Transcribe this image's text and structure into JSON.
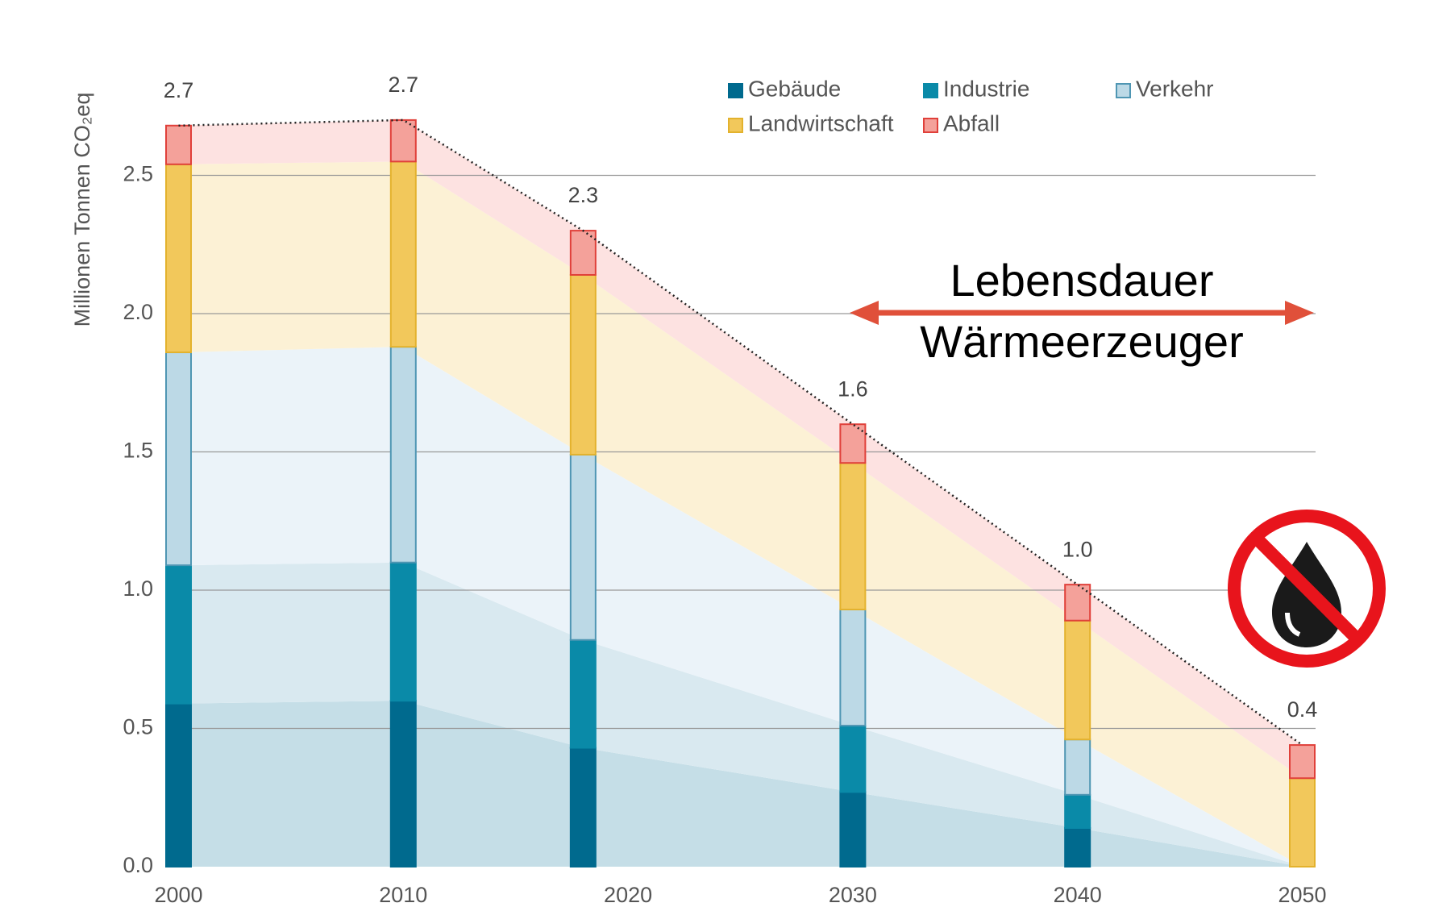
{
  "chart_data": {
    "type": "stacked_bar_area",
    "y_label": "Millionen Tonnen CO₂eq",
    "x": [
      2000,
      2010,
      2018,
      2030,
      2040,
      2050
    ],
    "xlim": [
      2000,
      2050
    ],
    "xticks": [
      2000,
      2010,
      2020,
      2030,
      2040,
      2050
    ],
    "ylim": [
      0,
      3.0
    ],
    "yticks": [
      {
        "value": 0,
        "label": "0.0"
      },
      0.5,
      {
        "value": 1,
        "label": "1.0"
      },
      1.5,
      {
        "value": 2,
        "label": "2.0"
      },
      2.5
    ],
    "grid": true,
    "series": [
      {
        "name": "Gebäude",
        "color": "#006a8e",
        "stroke": "#006a8e",
        "area_color": "#c5dee7",
        "values": [
          0.59,
          0.6,
          0.43,
          0.27,
          0.14,
          0
        ]
      },
      {
        "name": "Industrie",
        "color": "#0a8aa8",
        "stroke": "#0a8aa8",
        "area_color": "#d9e9f0",
        "values": [
          0.5,
          0.5,
          0.39,
          0.24,
          0.12,
          0
        ]
      },
      {
        "name": "Verkehr",
        "color": "#bcd9e6",
        "stroke": "#4f96b3",
        "area_color": "#ebf3f9",
        "values": [
          0.77,
          0.78,
          0.67,
          0.42,
          0.2,
          0
        ]
      },
      {
        "name": "Landwirtschaft",
        "color": "#f2c85b",
        "stroke": "#e3b22d",
        "area_color": "#fcf1d5",
        "values": [
          0.68,
          0.67,
          0.65,
          0.53,
          0.43,
          0.32
        ]
      },
      {
        "name": "Abfall",
        "color": "#f4a19a",
        "stroke": "#e0403a",
        "area_color": "#fde2e1",
        "values": [
          0.14,
          0.15,
          0.16,
          0.14,
          0.13,
          0.12
        ]
      }
    ],
    "totals": {
      "values": [
        2.68,
        2.7,
        2.3,
        1.6,
        1.02,
        0.44
      ],
      "value_labels": [
        "2.7",
        "2.7",
        "2.3",
        "1.6",
        "1.0",
        "0.4"
      ]
    },
    "annotation": [
      "Lebensdauer",
      "Wärmeerzeuger"
    ]
  }
}
